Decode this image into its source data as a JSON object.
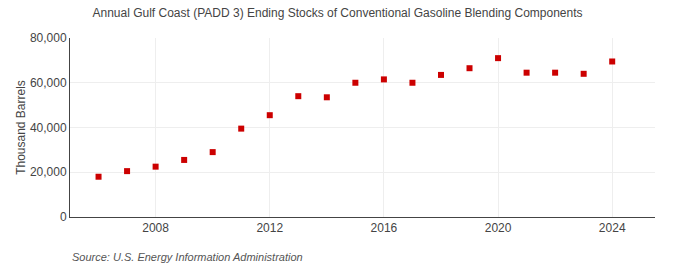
{
  "chart_data": {
    "type": "scatter",
    "title": "Annual Gulf Coast (PADD 3) Ending Stocks of Conventional Gasoline Blending Components",
    "ylabel": "Thousand Barrels",
    "annotations": [
      "Source: U.S. Energy Information Administration"
    ],
    "x": [
      2006,
      2007,
      2008,
      2009,
      2010,
      2011,
      2012,
      2013,
      2014,
      2015,
      2016,
      2017,
      2018,
      2019,
      2020,
      2021,
      2022,
      2023,
      2024
    ],
    "values": [
      18000,
      20500,
      22500,
      25500,
      29000,
      39500,
      45500,
      54000,
      53500,
      60000,
      61500,
      60000,
      63500,
      66500,
      71000,
      64500,
      64500,
      64000,
      69500
    ],
    "color": "#cc0000",
    "marker": "square",
    "xlim": [
      2005.0,
      2025.5
    ],
    "ylim": [
      0,
      80000
    ],
    "xticks": [
      2008,
      2012,
      2016,
      2020,
      2024
    ],
    "yticks": [
      0,
      {
        "value": 20000,
        "label": "20,000"
      },
      {
        "value": 40000,
        "label": "40,000"
      },
      {
        "value": 60000,
        "label": "60,000"
      },
      {
        "value": 80000,
        "label": "80,000"
      }
    ],
    "grid": true
  }
}
